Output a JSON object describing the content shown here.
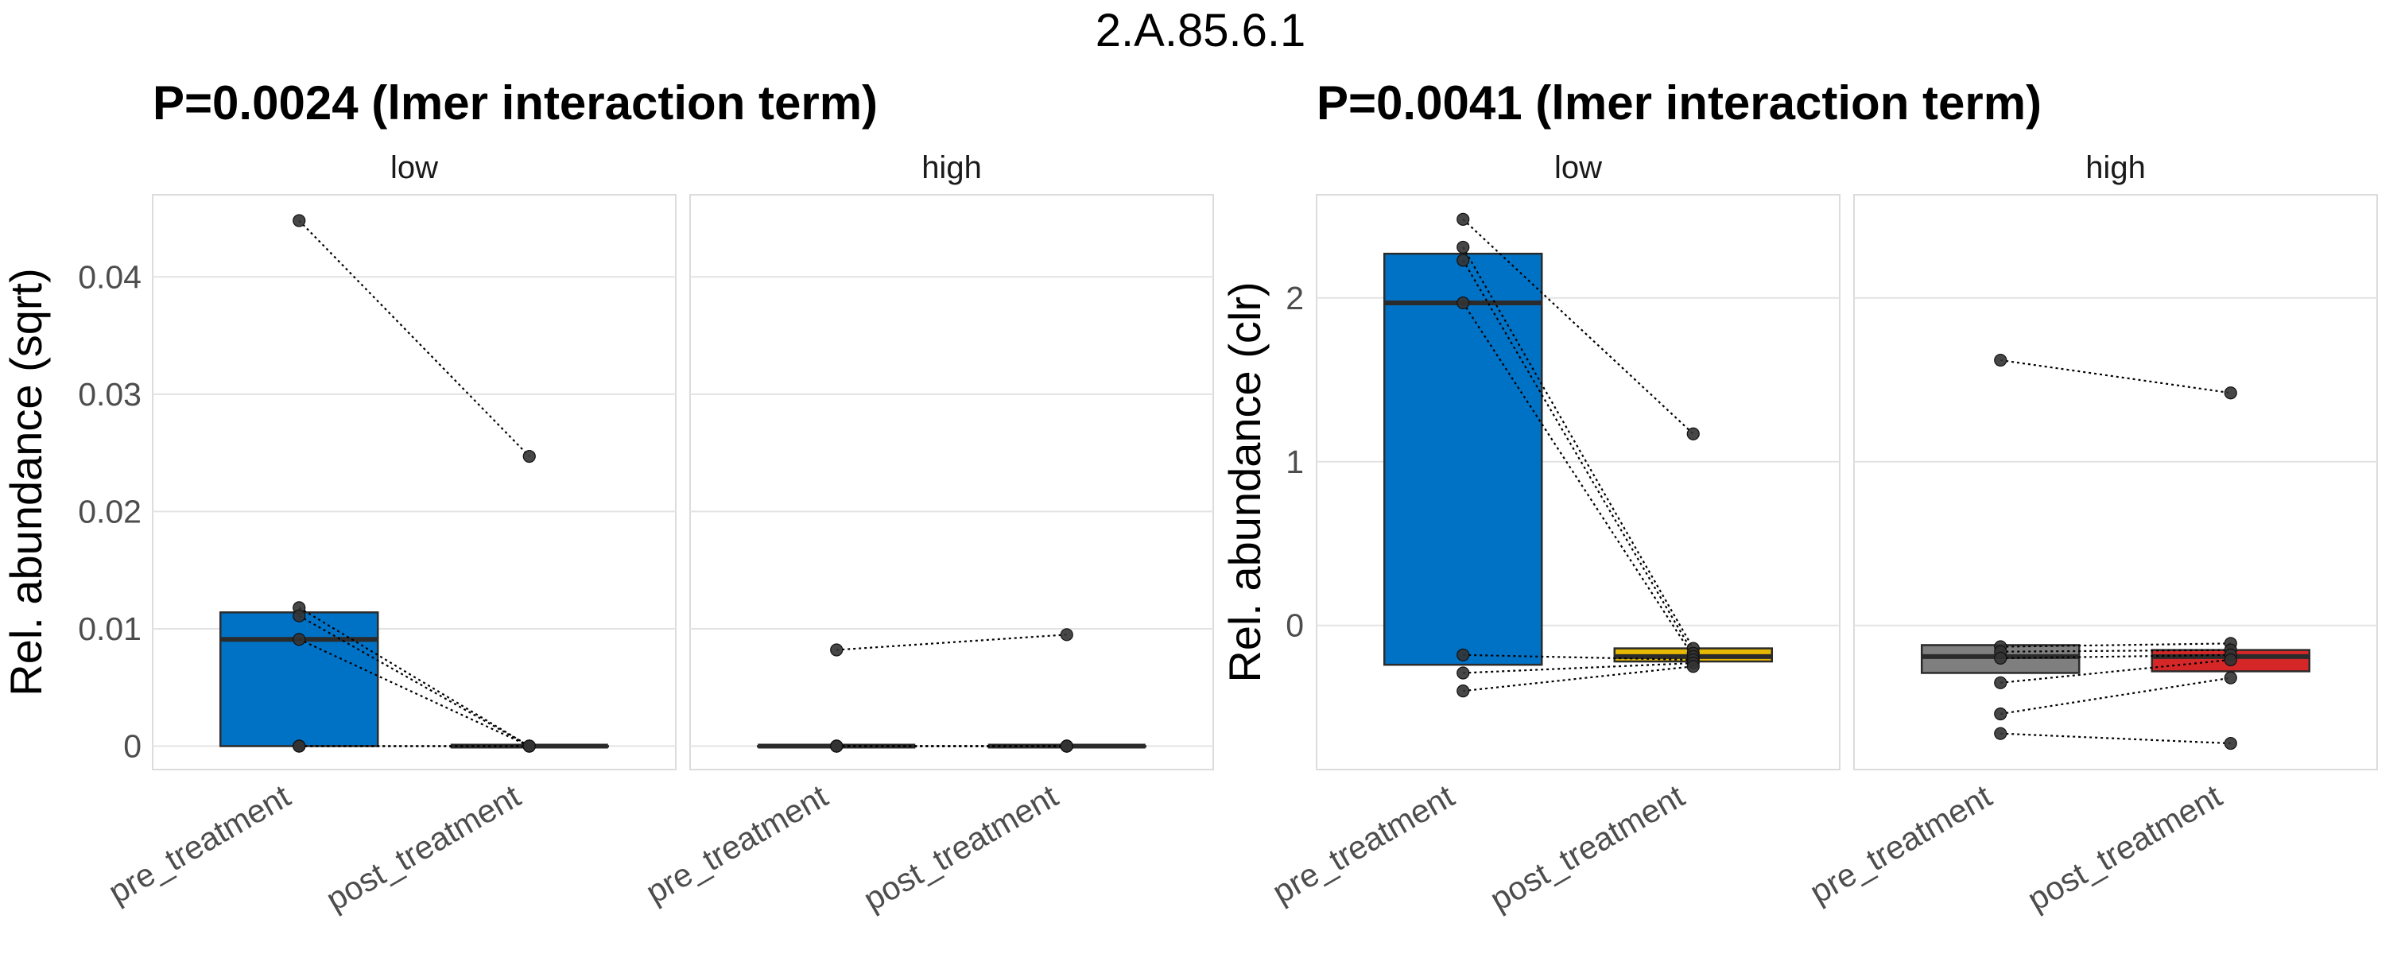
{
  "figure": {
    "super_title": "2.A.85.6.1"
  },
  "chart_data": [
    {
      "type": "box",
      "title": "P=0.0024 (lmer interaction term)",
      "ylabel": "Rel. abundance (sqrt)",
      "xlabel": "",
      "ylim": [
        -0.002,
        0.047
      ],
      "yticks": [
        0,
        0.01,
        0.02,
        0.03,
        0.04
      ],
      "ytick_labels": [
        "0",
        "0.01",
        "0.02",
        "0.03",
        "0.04"
      ],
      "grid": true,
      "facets": [
        {
          "label": "low",
          "categories": [
            "pre_treatment",
            "post_treatment"
          ],
          "boxes": [
            {
              "category": "pre_treatment",
              "q1": 0,
              "median": 0.0091,
              "q3": 0.0114,
              "fill": "#0072C6"
            },
            {
              "category": "post_treatment",
              "q1": 0,
              "median": 0,
              "q3": 0,
              "fill": "#E7B800"
            }
          ],
          "points": {
            "pre_treatment": [
              0.0448,
              0.0118,
              0.0111,
              0.0091,
              0,
              0,
              0
            ],
            "post_treatment": [
              0.0247,
              0,
              0,
              0,
              0,
              0,
              0
            ]
          }
        },
        {
          "label": "high",
          "categories": [
            "pre_treatment",
            "post_treatment"
          ],
          "boxes": [
            {
              "category": "pre_treatment",
              "q1": 0,
              "median": 0,
              "q3": 0,
              "fill": "#7F7F7F"
            },
            {
              "category": "post_treatment",
              "q1": 0,
              "median": 0,
              "q3": 0,
              "fill": "#D62728"
            }
          ],
          "points": {
            "pre_treatment": [
              0.0082,
              0,
              0,
              0,
              0,
              0,
              0
            ],
            "post_treatment": [
              0.0095,
              0,
              0,
              0,
              0,
              0,
              0
            ]
          }
        }
      ]
    },
    {
      "type": "box",
      "title": "P=0.0041 (lmer interaction term)",
      "ylabel": "Rel. abundance (clr)",
      "xlabel": "",
      "ylim": [
        -0.88,
        2.63
      ],
      "yticks": [
        0,
        1,
        2
      ],
      "ytick_labels": [
        "0",
        "1",
        "2"
      ],
      "grid": true,
      "facets": [
        {
          "label": "low",
          "categories": [
            "pre_treatment",
            "post_treatment"
          ],
          "boxes": [
            {
              "category": "pre_treatment",
              "q1": -0.24,
              "median": 1.97,
              "q3": 2.27,
              "fill": "#0072C6"
            },
            {
              "category": "post_treatment",
              "q1": -0.22,
              "median": -0.19,
              "q3": -0.14,
              "fill": "#E7B800"
            }
          ],
          "points": {
            "pre_treatment": [
              2.48,
              2.31,
              2.23,
              1.97,
              -0.18,
              -0.29,
              -0.4
            ],
            "post_treatment": [
              1.17,
              -0.14,
              -0.17,
              -0.19,
              -0.21,
              -0.23,
              -0.25
            ]
          }
        },
        {
          "label": "high",
          "categories": [
            "pre_treatment",
            "post_treatment"
          ],
          "boxes": [
            {
              "category": "pre_treatment",
              "q1": -0.29,
              "median": -0.19,
              "q3": -0.12,
              "fill": "#7F7F7F"
            },
            {
              "category": "post_treatment",
              "q1": -0.28,
              "median": -0.19,
              "q3": -0.15,
              "fill": "#D62728"
            }
          ],
          "points": {
            "pre_treatment": [
              1.62,
              -0.13,
              -0.16,
              -0.2,
              -0.35,
              -0.54,
              -0.66
            ],
            "post_treatment": [
              1.42,
              -0.11,
              -0.15,
              -0.18,
              -0.21,
              -0.32,
              -0.72
            ]
          }
        }
      ]
    }
  ]
}
